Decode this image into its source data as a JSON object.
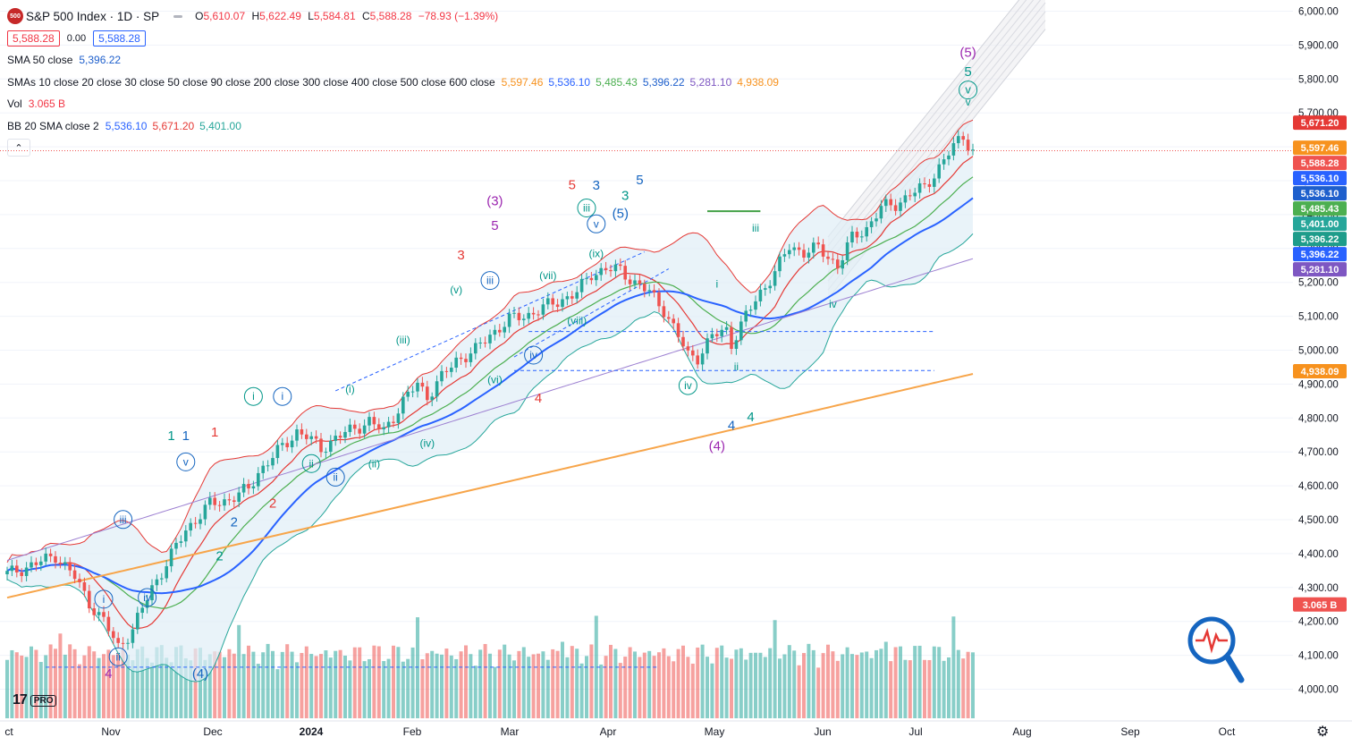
{
  "header": {
    "logo_text": "500",
    "title": "S&P 500 Index · 1D · SP",
    "ohlc": {
      "o_label": "O",
      "o": "5,610.07",
      "h_label": "H",
      "h": "5,622.49",
      "l_label": "L",
      "l": "5,584.81",
      "c_label": "C",
      "c": "5,588.28",
      "chg": "−78.93 (−1.39%)"
    },
    "sell_price": "5,588.28",
    "spread": "0.00",
    "buy_price": "5,588.28"
  },
  "indicators": {
    "sma50": {
      "name": "SMA 50 close",
      "value": "5,396.22"
    },
    "smas": {
      "name": "SMAs 10 close 20 close 30 close 50 close 90 close 200 close 300 close 400 close 500 close 600 close",
      "values": [
        "5,597.46",
        "5,536.10",
        "5,485.43",
        "5,396.22",
        "5,281.10",
        "4,938.09"
      ]
    },
    "vol": {
      "name": "Vol",
      "value": "3.065 B"
    },
    "bb": {
      "name": "BB 20 SMA close 2",
      "values": [
        "5,536.10",
        "5,671.20",
        "5,401.00"
      ]
    },
    "collapse_glyph": "⌃"
  },
  "colors": {
    "up": "#26a69a",
    "down": "#ef5350",
    "sma10": "#f7921e",
    "sma20": "#2962ff",
    "sma30": "#4caf50",
    "sma50": "#1e5fcc",
    "sma90": "#9c7fd1",
    "sma200": "#f7a54a",
    "bb": "#e53935",
    "bb_fill": "#dfeef7",
    "wave_purple": "#9c27b0",
    "wave_red": "#e53935",
    "wave_blue": "#1565c0",
    "wave_teal": "#009688"
  },
  "price_axis": {
    "ticks": [
      "6,000.00",
      "5,900.00",
      "5,800.00",
      "5,700.00",
      "5,600.00",
      "5,500.00",
      "5,400.00",
      "5,300.00",
      "5,200.00",
      "5,100.00",
      "5,000.00",
      "4,900.00",
      "4,800.00",
      "4,700.00",
      "4,600.00",
      "4,500.00",
      "4,400.00",
      "4,300.00",
      "4,200.00",
      "4,100.00",
      "4,000.00"
    ],
    "labels": [
      {
        "text": "5,671.20",
        "value": 5671.2,
        "color": "#e53935"
      },
      {
        "text": "5,597.46",
        "value": 5597.46,
        "color": "#f7921e"
      },
      {
        "text": "5,588.28",
        "value": 5588.28,
        "color": "#ef5350"
      },
      {
        "text": "5,536.10",
        "value": 5536.1,
        "color": "#2962ff"
      },
      {
        "text": "5,536.10",
        "value": 5536.1,
        "color": "#1e5fcc"
      },
      {
        "text": "5,485.43",
        "value": 5485.43,
        "color": "#4caf50"
      },
      {
        "text": "5,401.00",
        "value": 5401.0,
        "color": "#26a69a"
      },
      {
        "text": "5,396.22",
        "value": 5396.22,
        "color": "#1e9c8a"
      },
      {
        "text": "5,396.22",
        "value": 5396.22,
        "color": "#2962ff"
      },
      {
        "text": "5,281.10",
        "value": 5281.1,
        "color": "#7e57c2"
      },
      {
        "text": "4,938.09",
        "value": 4938.09,
        "color": "#f7921e"
      },
      {
        "text": "3.065 B",
        "value": 4250,
        "color": "#ef5350"
      }
    ]
  },
  "time_axis": [
    "ct",
    "Nov",
    "Dec",
    "2024",
    "Feb",
    "Mar",
    "Apr",
    "May",
    "Jun",
    "Jul",
    "Aug",
    "Sep",
    "Oct"
  ],
  "wave_labels": [
    {
      "t": "(5)",
      "d": 199,
      "p": 5865,
      "c": "#9c27b0",
      "s": 15
    },
    {
      "t": "5",
      "d": 199,
      "p": 5809,
      "c": "#009688",
      "s": 15
    },
    {
      "t": "v",
      "d": 199,
      "p": 5757,
      "c": "#009688",
      "s": 13,
      "circle": true
    },
    {
      "t": "v",
      "d": 199,
      "p": 5722,
      "c": "#009688",
      "s": 12
    },
    {
      "t": "(3)",
      "d": 101,
      "p": 5427,
      "c": "#9c27b0",
      "s": 15
    },
    {
      "t": "5",
      "d": 101,
      "p": 5355,
      "c": "#9c27b0",
      "s": 15
    },
    {
      "t": "5",
      "d": 117,
      "p": 5475,
      "c": "#e53935",
      "s": 15
    },
    {
      "t": "3",
      "d": 122,
      "p": 5474,
      "c": "#1565c0",
      "s": 15
    },
    {
      "t": "3",
      "d": 128,
      "p": 5443,
      "c": "#009688",
      "s": 15
    },
    {
      "t": "5",
      "d": 131,
      "p": 5490,
      "c": "#1565c0",
      "s": 15
    },
    {
      "t": "iii",
      "d": 120,
      "p": 5409,
      "c": "#009688",
      "s": 12,
      "circle": true
    },
    {
      "t": "v",
      "d": 122,
      "p": 5362,
      "c": "#1565c0",
      "s": 12,
      "circle": true
    },
    {
      "t": "(5)",
      "d": 127,
      "p": 5390,
      "c": "#1565c0",
      "s": 15
    },
    {
      "t": "(ix)",
      "d": 122,
      "p": 5275,
      "c": "#009688",
      "s": 12
    },
    {
      "t": "3",
      "d": 94,
      "p": 5268,
      "c": "#e53935",
      "s": 15
    },
    {
      "t": "(vii)",
      "d": 112,
      "p": 5210,
      "c": "#009688",
      "s": 12
    },
    {
      "t": "iii",
      "d": 100,
      "p": 5195,
      "c": "#1565c0",
      "s": 12,
      "circle": true
    },
    {
      "t": "(v)",
      "d": 93,
      "p": 5168,
      "c": "#009688",
      "s": 12
    },
    {
      "t": "(viii)",
      "d": 118,
      "p": 5077,
      "c": "#009688",
      "s": 12
    },
    {
      "t": "(iii)",
      "d": 82,
      "p": 5020,
      "c": "#009688",
      "s": 12
    },
    {
      "t": "iv",
      "d": 109,
      "p": 4975,
      "c": "#1565c0",
      "s": 12,
      "circle": true
    },
    {
      "t": "(vi)",
      "d": 101,
      "p": 4902,
      "c": "#009688",
      "s": 12
    },
    {
      "t": "(i)",
      "d": 71,
      "p": 4875,
      "c": "#009688",
      "s": 12
    },
    {
      "t": "4",
      "d": 110,
      "p": 4845,
      "c": "#e53935",
      "s": 15
    },
    {
      "t": "i",
      "d": 51,
      "p": 4853,
      "c": "#009688",
      "s": 12,
      "circle": true
    },
    {
      "t": "i",
      "d": 57,
      "p": 4853,
      "c": "#1565c0",
      "s": 12,
      "circle": true
    },
    {
      "t": "1",
      "d": 34,
      "p": 4735,
      "c": "#009688",
      "s": 15
    },
    {
      "t": "1",
      "d": 37,
      "p": 4735,
      "c": "#1565c0",
      "s": 15
    },
    {
      "t": "1",
      "d": 43,
      "p": 4745,
      "c": "#e53935",
      "s": 15
    },
    {
      "t": "v",
      "d": 37,
      "p": 4660,
      "c": "#1565c0",
      "s": 12,
      "circle": true
    },
    {
      "t": "(iv)",
      "d": 87,
      "p": 4715,
      "c": "#009688",
      "s": 12
    },
    {
      "t": "ii",
      "d": 63,
      "p": 4655,
      "c": "#009688",
      "s": 12,
      "circle": true
    },
    {
      "t": "ii",
      "d": 68,
      "p": 4615,
      "c": "#1565c0",
      "s": 12,
      "circle": true
    },
    {
      "t": "(ii)",
      "d": 76,
      "p": 4655,
      "c": "#009688",
      "s": 12
    },
    {
      "t": "2",
      "d": 55,
      "p": 4535,
      "c": "#e53935",
      "s": 15
    },
    {
      "t": "2",
      "d": 47,
      "p": 4480,
      "c": "#1565c0",
      "s": 15
    },
    {
      "t": "2",
      "d": 44,
      "p": 4380,
      "c": "#009688",
      "s": 15
    },
    {
      "t": "iii",
      "d": 24,
      "p": 4490,
      "c": "#1565c0",
      "s": 12,
      "circle": true
    },
    {
      "t": "i",
      "d": 20,
      "p": 4255,
      "c": "#1565c0",
      "s": 12,
      "circle": true
    },
    {
      "t": "iv",
      "d": 29,
      "p": 4260,
      "c": "#1565c0",
      "s": 12,
      "circle": true
    },
    {
      "t": "ii",
      "d": 23,
      "p": 4085,
      "c": "#1565c0",
      "s": 12,
      "circle": true
    },
    {
      "t": "4",
      "d": 21,
      "p": 4033,
      "c": "#9c27b0",
      "s": 15
    },
    {
      "t": "(4)",
      "d": 40,
      "p": 4033,
      "c": "#1565c0",
      "s": 15
    },
    {
      "t": "iv",
      "d": 141,
      "p": 4885,
      "c": "#009688",
      "s": 12,
      "circle": true
    },
    {
      "t": "ii",
      "d": 151,
      "p": 4940,
      "c": "#009688",
      "s": 12
    },
    {
      "t": "4",
      "d": 150,
      "p": 4765,
      "c": "#1565c0",
      "s": 15
    },
    {
      "t": "4",
      "d": 154,
      "p": 4790,
      "c": "#009688",
      "s": 15
    },
    {
      "t": "(4)",
      "d": 147,
      "p": 4705,
      "c": "#9c27b0",
      "s": 15
    },
    {
      "t": "i",
      "d": 147,
      "p": 5185,
      "c": "#009688",
      "s": 12
    },
    {
      "t": "iii",
      "d": 155,
      "p": 5350,
      "c": "#009688",
      "s": 12
    },
    {
      "t": "iv",
      "d": 171,
      "p": 5125,
      "c": "#009688",
      "s": 12
    }
  ]
}
